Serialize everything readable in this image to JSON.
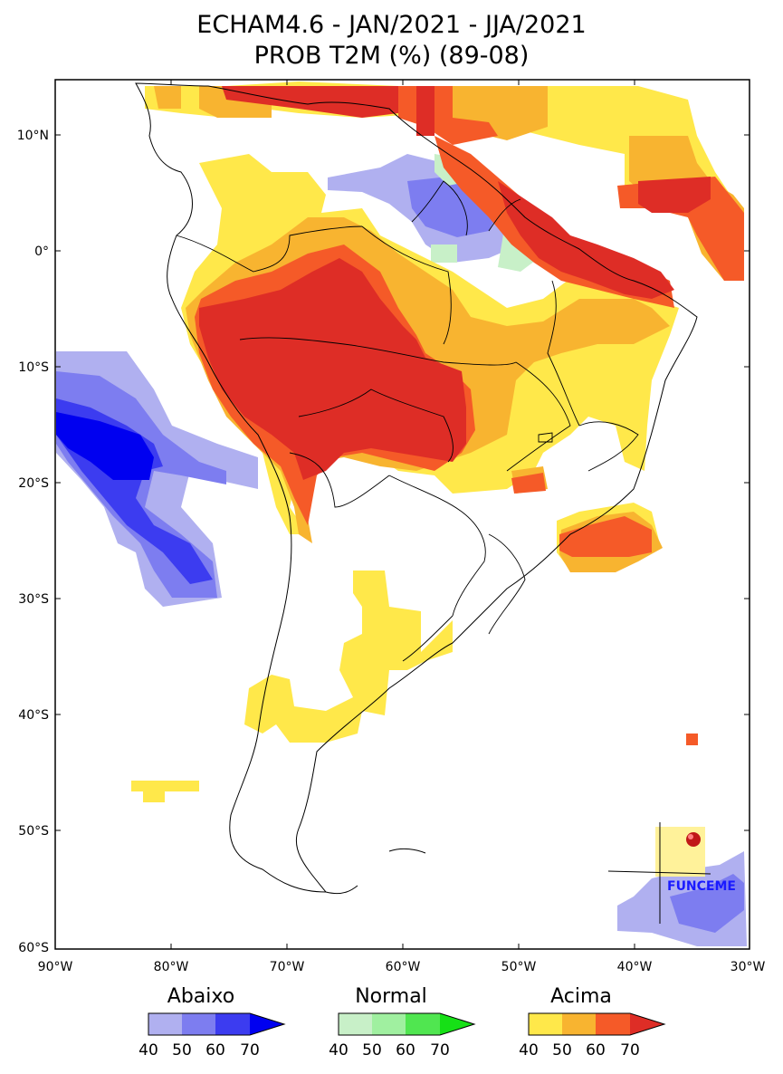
{
  "title_line1": "ECHAM4.6 - JAN/2021 - JJA/2021",
  "title_line2": "PROB T2M (%) (89-08)",
  "lat_labels": [
    "10°N",
    "0°",
    "10°S",
    "20°S",
    "30°S",
    "40°S",
    "50°S",
    "60°S"
  ],
  "lon_labels": [
    "90°W",
    "80°W",
    "70°W",
    "60°W",
    "50°W",
    "40°W",
    "30°W"
  ],
  "logo_text": "FUNCEME",
  "legend": [
    {
      "name": "Abaixo",
      "ticks": [
        "40",
        "50",
        "60",
        "70"
      ],
      "colors": [
        "#b0b0f0",
        "#7d7df0",
        "#3c3cf0",
        "#0000f0"
      ]
    },
    {
      "name": "Normal",
      "ticks": [
        "40",
        "50",
        "60",
        "70"
      ],
      "colors": [
        "#c8f0c8",
        "#a0f0a0",
        "#50e650",
        "#16e016"
      ]
    },
    {
      "name": "Acima",
      "ticks": [
        "40",
        "50",
        "60",
        "70"
      ],
      "colors": [
        "#ffe84a",
        "#f8b430",
        "#f55a28",
        "#de2d26"
      ]
    }
  ]
}
